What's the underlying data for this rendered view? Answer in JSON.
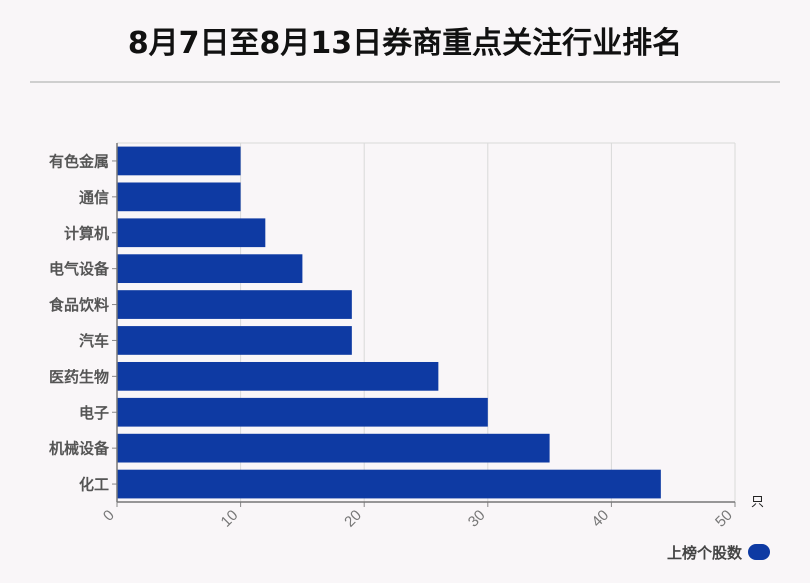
{
  "title": "8月7日至8月13日券商重点关注行业排名",
  "chart_data": {
    "type": "bar",
    "orientation": "horizontal",
    "categories": [
      "有色金属",
      "通信",
      "计算机",
      "电气设备",
      "食品饮料",
      "汽车",
      "医药生物",
      "电子",
      "机械设备",
      "化工"
    ],
    "series": [
      {
        "name": "上榜个股数",
        "values": [
          10,
          10,
          12,
          15,
          19,
          19,
          26,
          30,
          35,
          44
        ],
        "color": "#0e3aa3"
      }
    ],
    "xlim": [
      0,
      50
    ],
    "xticks": [
      0,
      10,
      20,
      30,
      40,
      50
    ],
    "unit": "只",
    "grid": true,
    "legend_position": "bottom-right"
  }
}
